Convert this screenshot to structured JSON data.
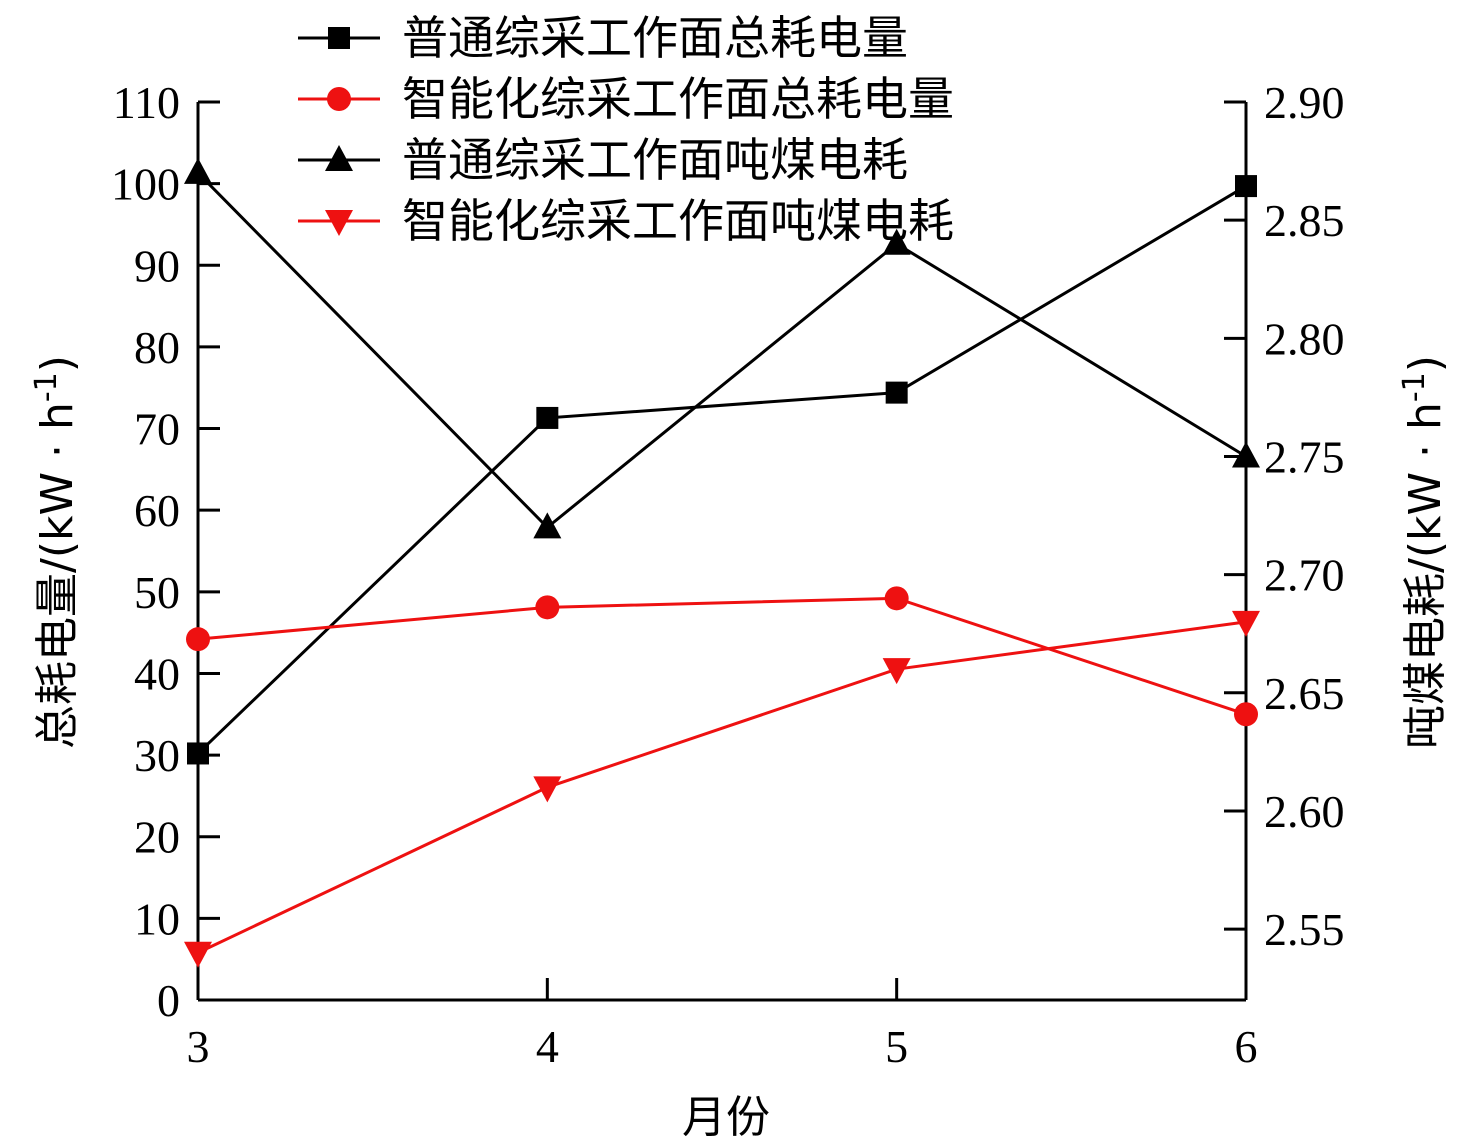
{
  "chart_data": {
    "type": "line",
    "x": [
      3,
      4,
      5,
      6
    ],
    "xlabel": "月份",
    "x_ticks": [
      "3",
      "4",
      "5",
      "6"
    ],
    "y_left": {
      "label_main": "总耗电量/(kW · h",
      "label_sup": "-1",
      "label_close": ")",
      "range": [
        0,
        110
      ],
      "ticks": [
        "0",
        "10",
        "20",
        "30",
        "40",
        "50",
        "60",
        "70",
        "80",
        "90",
        "100",
        "110"
      ]
    },
    "y_right": {
      "label_main": "吨煤电耗/(kW · h",
      "label_sup": "-1",
      "label_close": ")",
      "range": [
        2.52,
        2.9
      ],
      "ticks": [
        "2.55",
        "2.60",
        "2.65",
        "2.70",
        "2.75",
        "2.80",
        "2.85",
        "2.90"
      ]
    },
    "legend_position": "top",
    "series": [
      {
        "name": "普通综采工作面总耗电量",
        "axis": "left",
        "color": "#000000",
        "marker": "square",
        "values": [
          30.2,
          71.3,
          74.4,
          99.7
        ]
      },
      {
        "name": "智能化综采工作面总耗电量",
        "axis": "left",
        "color": "#ee1111",
        "marker": "circle",
        "values": [
          44.2,
          48.1,
          49.2,
          35.0
        ]
      },
      {
        "name": "普通综采工作面吨煤电耗",
        "axis": "right",
        "color": "#000000",
        "marker": "triangle-up",
        "values": [
          2.87,
          2.72,
          2.84,
          2.75
        ]
      },
      {
        "name": "智能化综采工作面吨煤电耗",
        "axis": "right",
        "color": "#ee1111",
        "marker": "triangle-down",
        "values": [
          2.54,
          2.61,
          2.66,
          2.68
        ]
      }
    ]
  }
}
